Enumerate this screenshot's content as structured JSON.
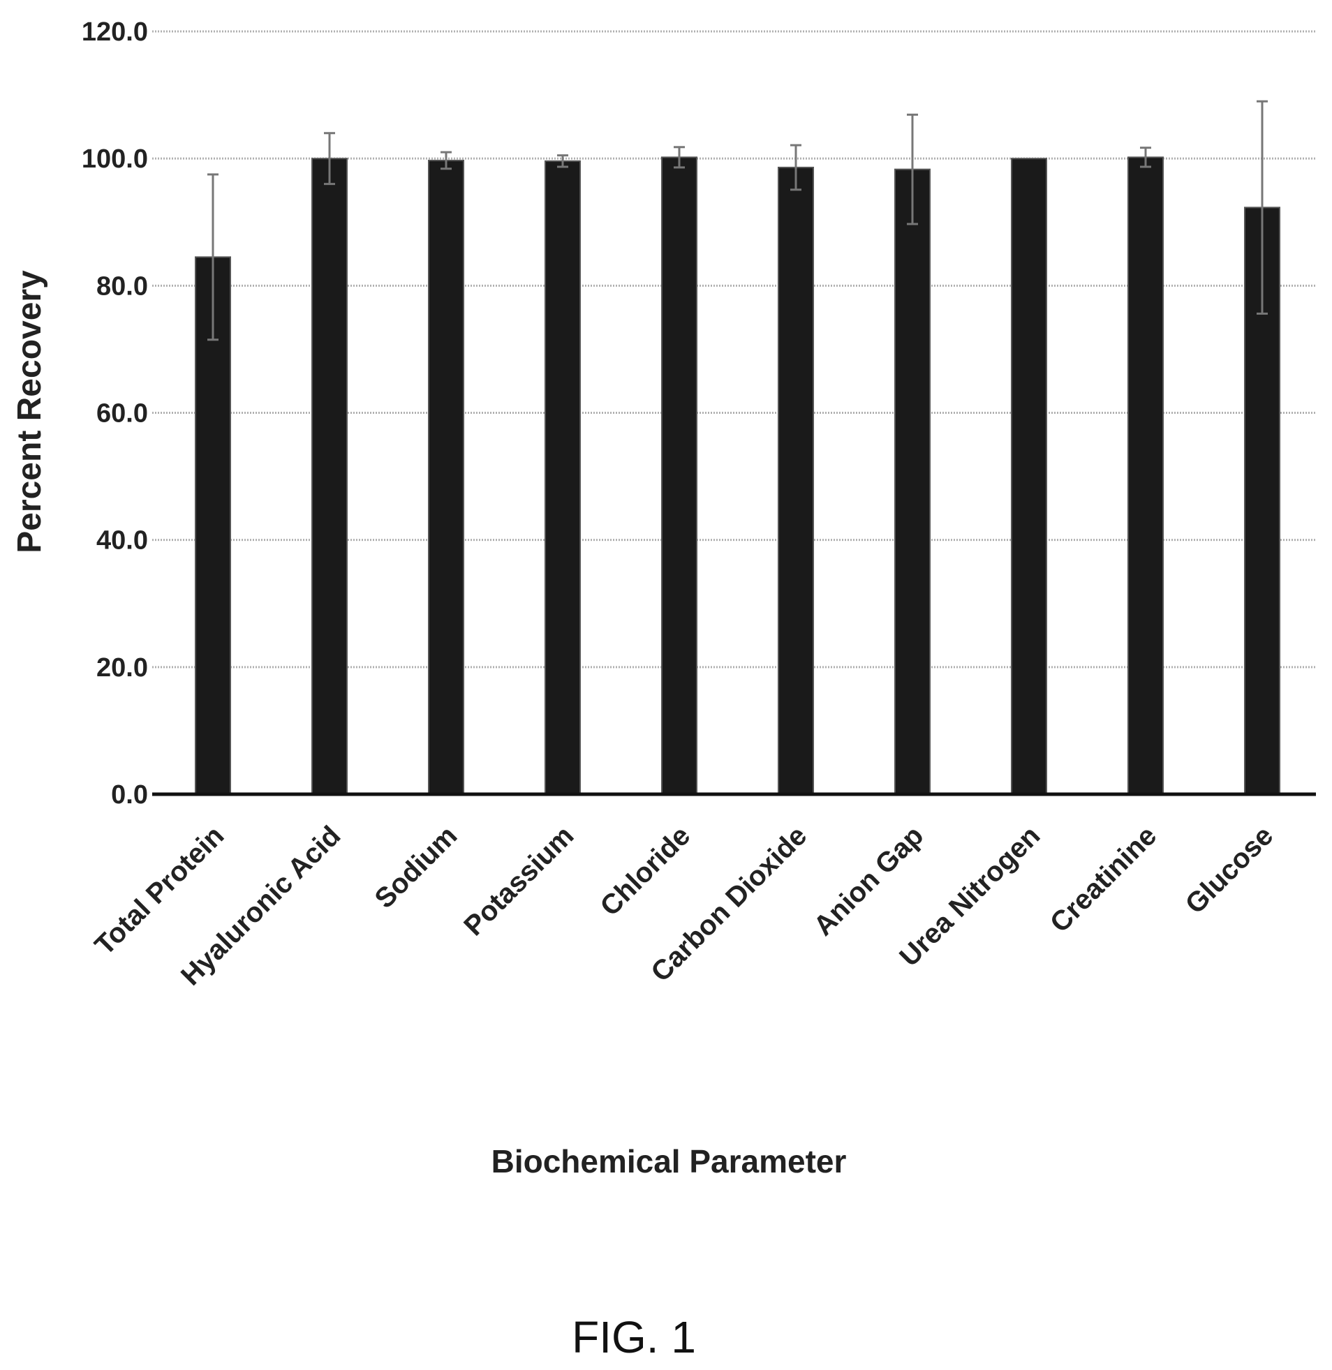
{
  "chart_data": {
    "type": "bar",
    "xlabel": "Biochemical Parameter",
    "ylabel": "Percent Recovery",
    "ylim": [
      0,
      120
    ],
    "yticks": [
      "0.0",
      "20.0",
      "40.0",
      "60.0",
      "80.0",
      "100.0",
      "120.0"
    ],
    "grid": true,
    "categories": [
      "Total Protein",
      "Hyaluronic Acid",
      "Sodium",
      "Potassium",
      "Chloride",
      "Carbon Dioxide",
      "Anion Gap",
      "Urea Nitrogen",
      "Creatinine",
      "Glucose"
    ],
    "values": [
      84.5,
      100.0,
      99.7,
      99.6,
      100.2,
      98.6,
      98.3,
      100.0,
      100.2,
      92.3
    ],
    "error": [
      13.0,
      4.0,
      1.3,
      0.9,
      1.6,
      3.5,
      8.6,
      0.0,
      1.5,
      16.7
    ],
    "bar_color": "#1a1a1a",
    "grid_color": "#b0b0b0"
  },
  "figure_label": "FIG. 1"
}
